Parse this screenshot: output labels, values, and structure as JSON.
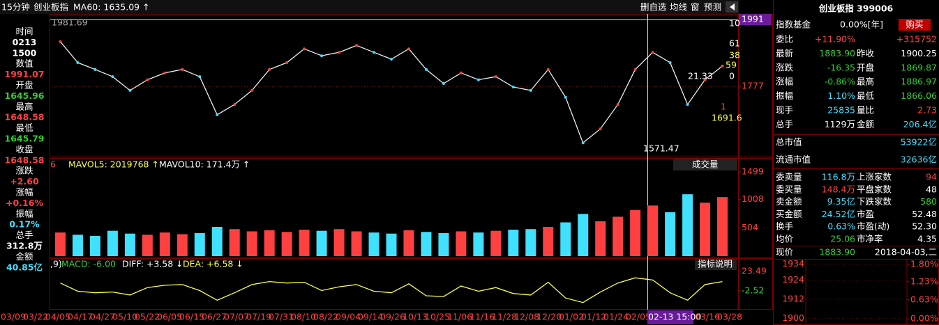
{
  "toolbar": {
    "period": "15分钟",
    "index": "创业板指",
    "ma": "MA60: 1635.09 ↑",
    "buttons": [
      "删自选",
      "均线",
      "窗",
      "预测"
    ]
  },
  "sidebar": [
    {
      "label": "时间",
      "values": [
        "0213",
        "1500"
      ]
    },
    {
      "label": "数值",
      "values": [
        "1991.07"
      ]
    },
    {
      "label": "开盘",
      "values": [
        "1645.96"
      ]
    },
    {
      "label": "最高",
      "values": [
        "1648.58"
      ]
    },
    {
      "label": "最低",
      "values": [
        "1645.79"
      ]
    },
    {
      "label": "收盘",
      "values": [
        "1648.58"
      ]
    },
    {
      "label": "涨跌",
      "values": [
        "+2.60"
      ]
    },
    {
      "label": "涨幅",
      "values": [
        "+0.16%"
      ]
    },
    {
      "label": "振幅",
      "values": [
        "0.17%"
      ]
    },
    {
      "label": "总手",
      "values": [
        "312.8万"
      ]
    },
    {
      "label": "金额",
      "values": [
        "40.85亿"
      ]
    }
  ],
  "price_panel": {
    "ylim": [
      1552,
      2009
    ],
    "yticks": [
      1991,
      1777
    ],
    "annotations": [
      "1981.69",
      "1571.47",
      "1691.6",
      "21.33",
      "1",
      "10",
      "61",
      "38",
      "59",
      "0"
    ],
    "closes": [
      1920,
      1853,
      1831,
      1808,
      1764,
      1798,
      1820,
      1831,
      1808,
      1686,
      1719,
      1764,
      1831,
      1853,
      1897,
      1875,
      1886,
      1908,
      1886,
      1864,
      1897,
      1831,
      1786,
      1820,
      1798,
      1808,
      1775,
      1764,
      1831,
      1742,
      1596,
      1641,
      1719,
      1831,
      1886,
      1853,
      1719,
      1798,
      1842
    ]
  },
  "volume_panel": {
    "header": [
      "6",
      "MAVOL5: 2019768 ↑",
      "MAVOL10: 171.4万 ↑"
    ],
    "selector": "成交量",
    "ylim": [
      0,
      1560
    ],
    "yticks": [
      1499,
      1008,
      504
    ],
    "values": [
      420,
      380,
      360,
      450,
      400,
      380,
      420,
      390,
      410,
      520,
      480,
      440,
      460,
      430,
      470,
      450,
      480,
      440,
      420,
      400,
      460,
      430,
      410,
      440,
      420,
      450,
      470,
      480,
      520,
      600,
      750,
      620,
      700,
      820,
      900,
      780,
      1100,
      950,
      1050
    ]
  },
  "macd_panel": {
    "header": [
      ",9)",
      "MACD: -6.00",
      "DIFF: +3.58 ↓",
      "DEA: +6.58 ↓"
    ],
    "button": "指标说明",
    "ylim": [
      -27.6,
      25.4
    ],
    "yticks": [
      23.49,
      -2.52
    ],
    "diff": [
      8,
      -3,
      -5,
      -4,
      -8,
      2,
      5,
      6,
      -2,
      -15,
      -5,
      6,
      10,
      8,
      9,
      -2,
      3,
      6,
      -3,
      -5,
      7,
      -9,
      -10,
      4,
      -3,
      2,
      -6,
      -8,
      9,
      -12,
      -18,
      -4,
      8,
      15,
      12,
      -5,
      -15,
      6,
      10
    ]
  },
  "dates": [
    "03/09",
    "03/22",
    "04/05",
    "04/17",
    "04/27",
    "05/10",
    "05/22",
    "06/05",
    "06/15",
    "06/27",
    "07/07",
    "07/19",
    "07/31",
    "08/10",
    "08/22",
    "09/04",
    "09/14",
    "09/26",
    "10/13",
    "10/25",
    "11/06",
    "11/16",
    "11/28",
    "12/08",
    "12/20",
    "01/02",
    "01/12",
    "01/24",
    "02/05",
    "02-13 15:00",
    "03/16",
    "03/28"
  ],
  "quote": {
    "title": "创业板指 399006",
    "fund": [
      "指数基金",
      "0.00%[年]",
      "购买"
    ],
    "rows": [
      [
        "委比",
        "+11.90%",
        "+315752"
      ],
      [
        "最新",
        "1883.90",
        "昨收",
        "1900.25"
      ],
      [
        "涨跌",
        "-16.35",
        "开盘",
        "1869.87"
      ],
      [
        "涨幅",
        "-0.86%",
        "最高",
        "1886.97"
      ],
      [
        "振幅",
        "1.10%",
        "最低",
        "1866.06"
      ],
      [
        "现手",
        "25835",
        "量比",
        "2.73"
      ],
      [
        "总手",
        "1129万",
        "金额",
        "206.4亿"
      ]
    ],
    "cap": [
      [
        "总市值",
        "53922亿"
      ],
      [
        "流通市值",
        "32636亿"
      ]
    ],
    "depth": [
      [
        "委卖量",
        "116.8万",
        "上涨家数",
        "94"
      ],
      [
        "委买量",
        "148.4万",
        "平盘家数",
        "48"
      ],
      [
        "卖金额",
        "9.35亿",
        "下跌家数",
        "580"
      ],
      [
        "买金额",
        "24.52亿",
        "市盈",
        "52.48"
      ],
      [
        "换手",
        "0.63%",
        "市盈(动)",
        "52.30"
      ],
      [
        "均价",
        "25.06",
        "市净率",
        "4.35"
      ]
    ],
    "now": [
      "现价",
      "1883.90",
      "2018-04-03,二"
    ],
    "mini": {
      "ylim": [
        1898,
        1936
      ],
      "yticks": [
        1934,
        1924,
        1912,
        1900
      ],
      "y2lim": [
        -0.09,
        1.92
      ],
      "y2ticks": [
        {
          "value": 1.8,
          "label": "1.80%"
        },
        {
          "value": 1.23,
          "label": "1.23%"
        },
        {
          "value": 0.63,
          "label": "0.63%"
        },
        {
          "value": 0,
          "label": "0.00%"
        }
      ]
    }
  }
}
